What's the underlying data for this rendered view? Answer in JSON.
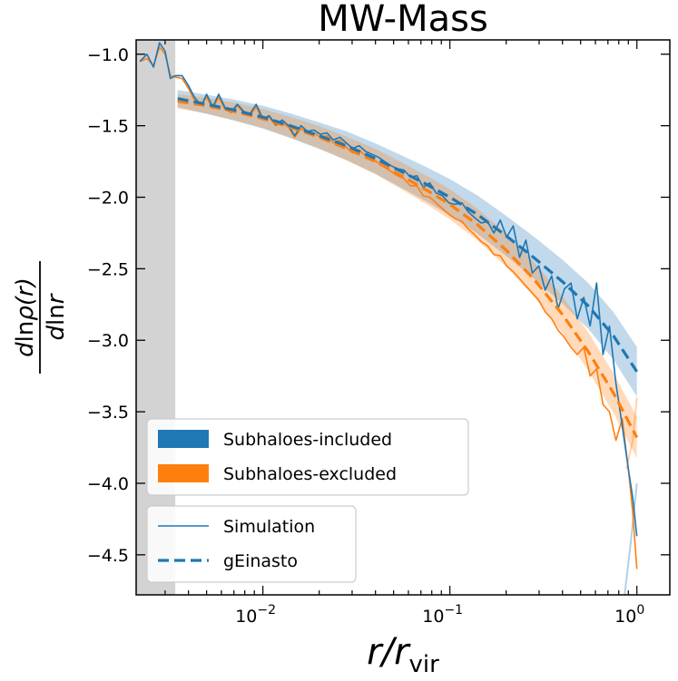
{
  "chart_data": {
    "type": "line",
    "title": "MW-Mass",
    "xlabel": "r/r_vir",
    "ylabel": "dlnρ(r)/dlnr",
    "xscale": "log",
    "xlim": [
      0.0021,
      1.5
    ],
    "ylim": [
      -4.78,
      -0.9
    ],
    "yticks": [
      -1.0,
      -1.5,
      -2.0,
      -2.5,
      -3.0,
      -3.5,
      -4.0,
      -4.5
    ],
    "ytick_labels": [
      "−1.0",
      "−1.5",
      "−2.0",
      "−2.5",
      "−3.0",
      "−3.5",
      "−4.0",
      "−4.5"
    ],
    "xticks": [
      0.01,
      0.1,
      1
    ],
    "xtick_labels": [
      "10",
      "10",
      "10"
    ],
    "xtick_exponents": [
      "−2",
      "−1",
      "0"
    ],
    "shaded_region": {
      "x": [
        0.0021,
        0.0034
      ],
      "color": "#d3d3d3"
    },
    "grid": false,
    "colors": {
      "included": "#1f77b4",
      "excluded": "#ff7f0e"
    },
    "legend_groups": [
      {
        "position": "lower-left-upper",
        "entries": [
          {
            "label": "Subhaloes-included",
            "style": "patch",
            "color": "#1f77b4"
          },
          {
            "label": "Subhaloes-excluded",
            "style": "patch",
            "color": "#ff7f0e"
          }
        ]
      },
      {
        "position": "lower-left",
        "entries": [
          {
            "label": "Simulation",
            "style": "thin-line",
            "color": "#1f77b4"
          },
          {
            "label": "gEinasto",
            "style": "dashed-line",
            "color": "#1f77b4"
          }
        ]
      }
    ],
    "series": [
      {
        "group": "included",
        "kind": "simulation",
        "x": [
          0.0022,
          0.0024,
          0.0026,
          0.0028,
          0.003,
          0.0032,
          0.0034,
          0.0037,
          0.004,
          0.0043,
          0.0047,
          0.005,
          0.0054,
          0.0058,
          0.0063,
          0.0068,
          0.0073,
          0.0079,
          0.0085,
          0.0092,
          0.01,
          0.0108,
          0.0117,
          0.0127,
          0.0137,
          0.0148,
          0.016,
          0.0173,
          0.0187,
          0.0203,
          0.022,
          0.0238,
          0.0258,
          0.0279,
          0.0302,
          0.0327,
          0.0354,
          0.0383,
          0.0414,
          0.0448,
          0.0485,
          0.0525,
          0.0568,
          0.0615,
          0.0666,
          0.072,
          0.078,
          0.0844,
          0.0913,
          0.0988,
          0.107,
          0.116,
          0.125,
          0.135,
          0.147,
          0.159,
          0.172,
          0.186,
          0.201,
          0.218,
          0.236,
          0.255,
          0.276,
          0.299,
          0.323,
          0.35,
          0.379,
          0.41,
          0.444,
          0.48,
          0.52,
          0.562,
          0.609,
          0.659,
          0.713,
          0.772,
          0.835,
          0.9,
          0.95,
          1.0
        ],
        "y": [
          -1.05,
          -1.0,
          -1.09,
          -0.92,
          -0.98,
          -1.17,
          -1.15,
          -1.15,
          -1.22,
          -1.3,
          -1.36,
          -1.28,
          -1.37,
          -1.28,
          -1.38,
          -1.4,
          -1.35,
          -1.4,
          -1.42,
          -1.35,
          -1.45,
          -1.43,
          -1.49,
          -1.46,
          -1.5,
          -1.57,
          -1.5,
          -1.54,
          -1.53,
          -1.56,
          -1.55,
          -1.6,
          -1.58,
          -1.62,
          -1.66,
          -1.64,
          -1.68,
          -1.7,
          -1.72,
          -1.75,
          -1.78,
          -1.8,
          -1.81,
          -1.86,
          -1.85,
          -1.93,
          -1.9,
          -1.97,
          -1.99,
          -2.04,
          -2.05,
          -2.04,
          -2.1,
          -2.14,
          -2.18,
          -2.17,
          -2.25,
          -2.16,
          -2.28,
          -2.2,
          -2.42,
          -2.3,
          -2.53,
          -2.48,
          -2.65,
          -2.55,
          -2.78,
          -2.64,
          -2.6,
          -2.85,
          -2.7,
          -2.9,
          -2.6,
          -3.1,
          -2.9,
          -3.3,
          -3.6,
          -3.9,
          -4.1,
          -4.37
        ]
      },
      {
        "group": "excluded",
        "kind": "simulation",
        "x": [
          0.0022,
          0.0024,
          0.0026,
          0.0028,
          0.003,
          0.0032,
          0.0034,
          0.0037,
          0.004,
          0.0043,
          0.0047,
          0.005,
          0.0054,
          0.0058,
          0.0063,
          0.0068,
          0.0073,
          0.0079,
          0.0085,
          0.0092,
          0.01,
          0.0108,
          0.0117,
          0.0127,
          0.0137,
          0.0148,
          0.016,
          0.0173,
          0.0187,
          0.0203,
          0.022,
          0.0238,
          0.0258,
          0.0279,
          0.0302,
          0.0327,
          0.0354,
          0.0383,
          0.0414,
          0.0448,
          0.0485,
          0.0525,
          0.0568,
          0.0615,
          0.0666,
          0.072,
          0.078,
          0.0844,
          0.0913,
          0.0988,
          0.107,
          0.116,
          0.125,
          0.135,
          0.147,
          0.159,
          0.172,
          0.186,
          0.201,
          0.218,
          0.236,
          0.255,
          0.276,
          0.299,
          0.323,
          0.35,
          0.379,
          0.41,
          0.444,
          0.48,
          0.52,
          0.562,
          0.609,
          0.659,
          0.713,
          0.772,
          0.835,
          0.9,
          0.95,
          1.0
        ],
        "y": [
          -1.05,
          -1.03,
          -1.08,
          -0.95,
          -1.0,
          -1.15,
          -1.16,
          -1.17,
          -1.24,
          -1.32,
          -1.35,
          -1.3,
          -1.38,
          -1.3,
          -1.39,
          -1.41,
          -1.36,
          -1.41,
          -1.43,
          -1.37,
          -1.46,
          -1.44,
          -1.5,
          -1.48,
          -1.51,
          -1.58,
          -1.52,
          -1.55,
          -1.55,
          -1.58,
          -1.57,
          -1.62,
          -1.6,
          -1.65,
          -1.69,
          -1.67,
          -1.71,
          -1.73,
          -1.76,
          -1.79,
          -1.82,
          -1.85,
          -1.87,
          -1.92,
          -1.92,
          -1.99,
          -2.0,
          -2.04,
          -2.08,
          -2.12,
          -2.15,
          -2.17,
          -2.22,
          -2.26,
          -2.31,
          -2.34,
          -2.4,
          -2.41,
          -2.48,
          -2.52,
          -2.57,
          -2.62,
          -2.67,
          -2.72,
          -2.8,
          -2.85,
          -2.93,
          -2.98,
          -3.05,
          -3.1,
          -3.05,
          -3.25,
          -3.2,
          -3.45,
          -3.5,
          -3.7,
          -3.55,
          -3.9,
          -4.2,
          -4.6
        ]
      },
      {
        "group": "included",
        "kind": "gEinasto",
        "x": [
          0.0035,
          0.005,
          0.007,
          0.01,
          0.014,
          0.02,
          0.028,
          0.04,
          0.055,
          0.075,
          0.1,
          0.14,
          0.2,
          0.28,
          0.4,
          0.55,
          0.75,
          1.0
        ],
        "y": [
          -1.31,
          -1.35,
          -1.39,
          -1.44,
          -1.5,
          -1.57,
          -1.64,
          -1.73,
          -1.82,
          -1.91,
          -2.0,
          -2.12,
          -2.27,
          -2.42,
          -2.59,
          -2.76,
          -2.97,
          -3.22
        ],
        "band": 0.06
      },
      {
        "group": "excluded",
        "kind": "gEinasto",
        "x": [
          0.0035,
          0.005,
          0.007,
          0.01,
          0.014,
          0.02,
          0.028,
          0.04,
          0.055,
          0.075,
          0.1,
          0.14,
          0.2,
          0.28,
          0.4,
          0.55,
          0.75,
          1.0
        ],
        "y": [
          -1.33,
          -1.36,
          -1.4,
          -1.45,
          -1.51,
          -1.58,
          -1.66,
          -1.75,
          -1.85,
          -1.95,
          -2.05,
          -2.19,
          -2.37,
          -2.57,
          -2.82,
          -3.08,
          -3.37,
          -3.68
        ],
        "band": 0.05
      }
    ],
    "faint_lines": [
      {
        "group": "excluded",
        "x": [
          0.88,
          0.95,
          1.0
        ],
        "y": [
          -3.9,
          -3.7,
          -3.4
        ]
      },
      {
        "group": "included",
        "x": [
          0.86,
          0.93,
          1.0
        ],
        "y": [
          -4.78,
          -4.4,
          -4.0
        ]
      }
    ]
  }
}
